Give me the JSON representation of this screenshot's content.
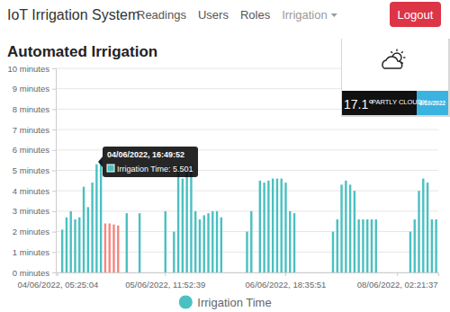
{
  "page": {
    "brand": "IoT Irrigation System",
    "nav": [
      "Readings",
      "Users",
      "Roles"
    ],
    "dropdown": "Irrigation",
    "button": "Logout"
  },
  "weather": {
    "temperature": "17.1°",
    "condition": "PARTLY CLOUDY",
    "date": "6/10/2022"
  },
  "chart_data": {
    "type": "bar",
    "title": "Automated Irrigation",
    "categories": [
      "04/06/2022, 05:25:04",
      null,
      null,
      null,
      null,
      null,
      null,
      null,
      null,
      null,
      null,
      null,
      null,
      null,
      null,
      null,
      null,
      null,
      null,
      null,
      null,
      null,
      null,
      null,
      null,
      "05/06/2022, 11:52:39",
      null,
      null,
      null,
      null,
      null,
      null,
      null,
      null,
      null,
      null,
      null,
      null,
      null,
      null,
      null,
      null,
      null,
      null,
      null,
      null,
      null,
      null,
      null,
      null,
      null,
      null,
      null,
      "06/06/2022, 18:35:51",
      null,
      null,
      null,
      null,
      null,
      null,
      null,
      null,
      null,
      null,
      null,
      null,
      null,
      null,
      null,
      null,
      null,
      null,
      null,
      null,
      null,
      null,
      null,
      null,
      null,
      "08/06/2022, 02:21:37",
      null,
      null,
      null,
      null,
      null,
      null,
      null,
      null,
      null
    ],
    "series": [
      {
        "name": "Irrigation Time",
        "color": "#4bc0c0",
        "colors": [
          "#4bc0c0",
          "#4bc0c0",
          "#4bc0c0",
          "#4bc0c0",
          "#4bc0c0",
          "#4bc0c0",
          "#4bc0c0",
          "#4bc0c0",
          "#4bc0c0",
          "#4bc0c0",
          "#4bc0c0",
          "#f4877f",
          "#f4877f",
          "#f4877f",
          "#f4877f",
          "#4bc0c0",
          "#4bc0c0",
          "#4bc0c0",
          "#4bc0c0",
          "#4bc0c0",
          "#4bc0c0",
          "#4bc0c0",
          "#4bc0c0",
          "#4bc0c0",
          "#4bc0c0",
          "#4bc0c0",
          "#4bc0c0",
          "#4bc0c0",
          "#4bc0c0",
          "#4bc0c0",
          "#4bc0c0",
          "#4bc0c0",
          "#4bc0c0",
          "#4bc0c0",
          "#4bc0c0",
          "#4bc0c0",
          "#4bc0c0",
          "#4bc0c0",
          "#4bc0c0",
          "#4bc0c0",
          "#4bc0c0",
          "#4bc0c0",
          "#4bc0c0",
          "#4bc0c0",
          "#4bc0c0",
          "#4bc0c0",
          "#4bc0c0",
          "#4bc0c0",
          "#4bc0c0",
          "#4bc0c0",
          "#4bc0c0",
          "#4bc0c0",
          "#4bc0c0",
          "#4bc0c0",
          "#4bc0c0",
          "#4bc0c0",
          "#4bc0c0",
          "#4bc0c0",
          "#4bc0c0",
          "#4bc0c0",
          "#4bc0c0",
          "#4bc0c0",
          "#4bc0c0",
          "#4bc0c0",
          "#4bc0c0",
          "#4bc0c0",
          "#4bc0c0",
          "#4bc0c0",
          "#4bc0c0",
          "#4bc0c0",
          "#4bc0c0",
          "#4bc0c0",
          "#4bc0c0",
          "#4bc0c0",
          "#4bc0c0",
          "#4bc0c0",
          "#4bc0c0",
          "#4bc0c0",
          "#4bc0c0",
          "#4bc0c0",
          "#4bc0c0",
          "#4bc0c0",
          "#4bc0c0",
          "#4bc0c0",
          "#4bc0c0",
          "#4bc0c0",
          "#4bc0c0",
          "#4bc0c0",
          "#4bc0c0"
        ],
        "values": [
          0,
          2.1,
          2.7,
          3,
          2.6,
          2.7,
          4.2,
          3.2,
          4.4,
          5.3,
          5.501,
          2.4,
          2.4,
          2.35,
          2.3,
          0,
          2.9,
          0,
          0,
          2.9,
          0,
          0,
          0,
          0,
          0,
          3,
          0,
          2,
          5.2,
          4.6,
          5,
          5.2,
          3,
          2.6,
          2.8,
          2.9,
          3,
          3,
          2.7,
          0,
          0,
          0,
          0,
          0,
          2,
          3,
          0,
          4.5,
          4.4,
          4.5,
          4.6,
          4.6,
          4.6,
          4.4,
          3,
          2.9,
          0,
          0,
          0,
          0,
          0,
          0,
          0,
          0,
          2,
          2.6,
          4.3,
          4.5,
          4.3,
          4,
          2.6,
          2.6,
          2.6,
          2.6,
          2.6,
          0,
          0,
          0,
          0,
          0,
          0,
          0,
          2,
          2.6,
          4,
          4.6,
          4.4,
          2.6,
          2.6
        ]
      }
    ],
    "ylim": [
      0,
      10
    ],
    "yticks": [
      {
        "value": 0,
        "label": "0 minutes"
      },
      {
        "value": 1,
        "label": "1 minutes"
      },
      {
        "value": 2,
        "label": "2 minutes"
      },
      {
        "value": 3,
        "label": "3 minutes"
      },
      {
        "value": 4,
        "label": "4 minutes"
      },
      {
        "value": 5,
        "label": "5 minutes"
      },
      {
        "value": 6,
        "label": "6 minutes"
      },
      {
        "value": 7,
        "label": "7 minutes"
      },
      {
        "value": 8,
        "label": "8 minutes"
      },
      {
        "value": 9,
        "label": "9 minutes"
      },
      {
        "value": 10,
        "label": "10 minutes"
      }
    ],
    "grid": true,
    "legend": "bottom",
    "annotations": [
      {
        "title": "04/06/2022, 16:49:52",
        "text": "Irrigation Time: 5.501"
      }
    ]
  }
}
